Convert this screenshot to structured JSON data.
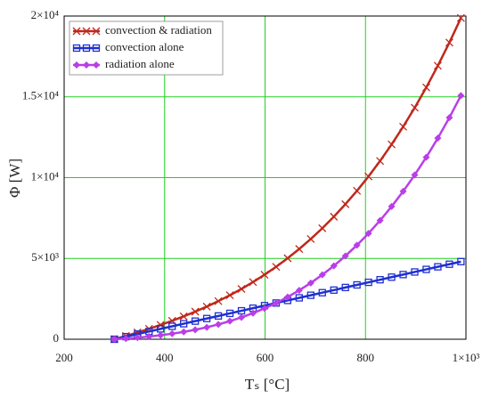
{
  "chart_data": {
    "type": "line",
    "xlabel": "Tₛ [°C]",
    "ylabel": "Φ [W]",
    "x": [
      300,
      323,
      346,
      369,
      392,
      415,
      438,
      461,
      484,
      507,
      530,
      553,
      576,
      599,
      622,
      645,
      668,
      691,
      714,
      737,
      760,
      783,
      806,
      829,
      852,
      875,
      898,
      921,
      944,
      967,
      990
    ],
    "series": [
      {
        "name": "convection & radiation",
        "color": "#c0281c",
        "marker": "x",
        "values": [
          0,
          204,
          419,
          645,
          886,
          1141,
          1414,
          1708,
          2021,
          2359,
          2722,
          3113,
          3535,
          3991,
          4482,
          5013,
          5585,
          6202,
          6867,
          7583,
          8355,
          9184,
          10074,
          11030,
          12055,
          13153,
          14328,
          15583,
          16924,
          18356,
          19880
        ]
      },
      {
        "name": "convection alone",
        "color": "#1f2fd0",
        "marker": "square",
        "values": [
          0,
          160,
          320,
          480,
          640,
          800,
          960,
          1121,
          1281,
          1441,
          1601,
          1761,
          1921,
          2081,
          2241,
          2401,
          2561,
          2721,
          2881,
          3041,
          3202,
          3362,
          3522,
          3682,
          3842,
          4002,
          4162,
          4322,
          4482,
          4642,
          4802
        ]
      },
      {
        "name": "radiation alone",
        "color": "#b93ee8",
        "marker": "diamond",
        "values": [
          0,
          44,
          99,
          165,
          246,
          341,
          454,
          587,
          740,
          918,
          1121,
          1352,
          1614,
          1910,
          2241,
          2612,
          3024,
          3481,
          3986,
          4542,
          5153,
          5822,
          6552,
          7348,
          8213,
          9151,
          10166,
          11261,
          12442,
          13714,
          15078
        ]
      }
    ],
    "xlim": [
      200,
      1000
    ],
    "xticks": [
      200,
      400,
      600,
      800,
      {
        "value": 1000,
        "label": "1×10³"
      }
    ],
    "ylim": [
      0,
      20000
    ],
    "yticks": [
      0,
      {
        "value": 5000,
        "label": "5×10³"
      },
      {
        "value": 10000,
        "label": "1×10⁴"
      },
      {
        "value": 15000,
        "label": "1.5×10⁴"
      },
      {
        "value": 20000,
        "label": "2×10⁴"
      }
    ],
    "grid": true,
    "legend": "upper left"
  }
}
